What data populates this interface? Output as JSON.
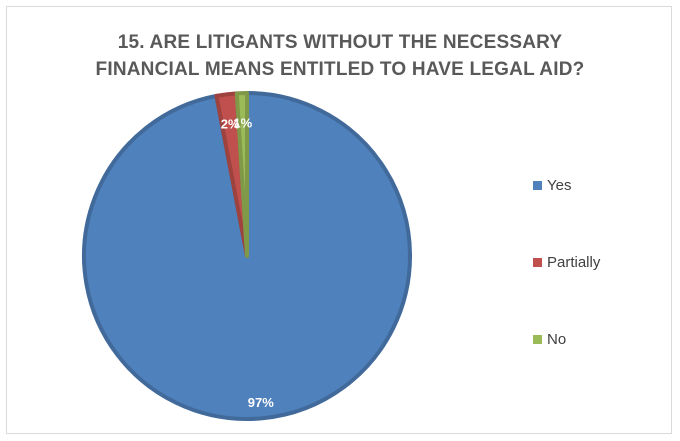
{
  "chart_data": {
    "type": "pie",
    "title_lines": [
      "15. ARE LITIGANTS WITHOUT THE NECESSARY",
      "FINANCIAL MEANS ENTITLED TO HAVE LEGAL AID?"
    ],
    "categories": [
      "Yes",
      "Partially",
      "No"
    ],
    "values": [
      97,
      2,
      1
    ],
    "data_labels": [
      "97%",
      "2%",
      "1%"
    ],
    "colors": [
      "#4f81bd",
      "#c0504d",
      "#9bbb59"
    ],
    "legend_position": "right",
    "start_angle_deg": 0,
    "direction": "clockwise"
  }
}
